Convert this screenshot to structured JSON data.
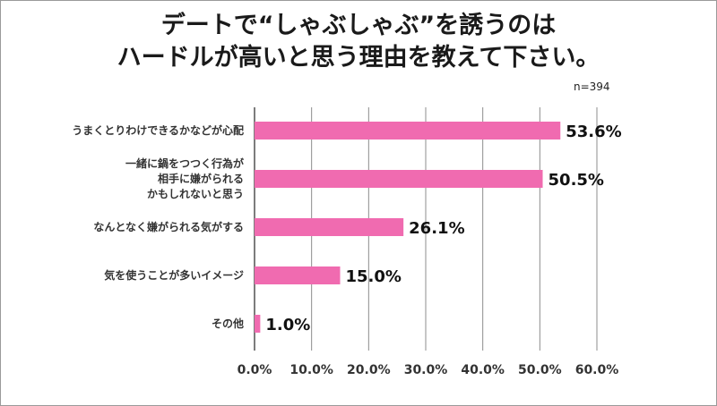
{
  "title": {
    "line1": "デートで“しゃぶしゃぶ”を誘うのは",
    "line2": "ハードルが高いと思う理由を教えて下さい。"
  },
  "sample_size": "n=394",
  "colors": {
    "bar": "#f06bb0",
    "grid": "#8c8c8c",
    "axis": "#444444"
  },
  "chart_data": {
    "type": "bar",
    "orientation": "horizontal",
    "categories": [
      "うまくとりわけできるかなどが心配",
      "一緒に鍋をつつく行為が\n相手に嫌がられる\nかもしれないと思う",
      "なんとなく嫌がられる気がする",
      "気を使うことが多いイメージ",
      "その他"
    ],
    "values": [
      53.6,
      50.5,
      26.1,
      15.0,
      1.0
    ],
    "value_labels": [
      "53.6%",
      "50.5%",
      "26.1%",
      "15.0%",
      "1.0%"
    ],
    "x_ticks": [
      "0.0%",
      "10.0%",
      "20.0%",
      "30.0%",
      "40.0%",
      "50.0%",
      "60.0%"
    ],
    "xlim": [
      0,
      60
    ],
    "grid": true
  }
}
